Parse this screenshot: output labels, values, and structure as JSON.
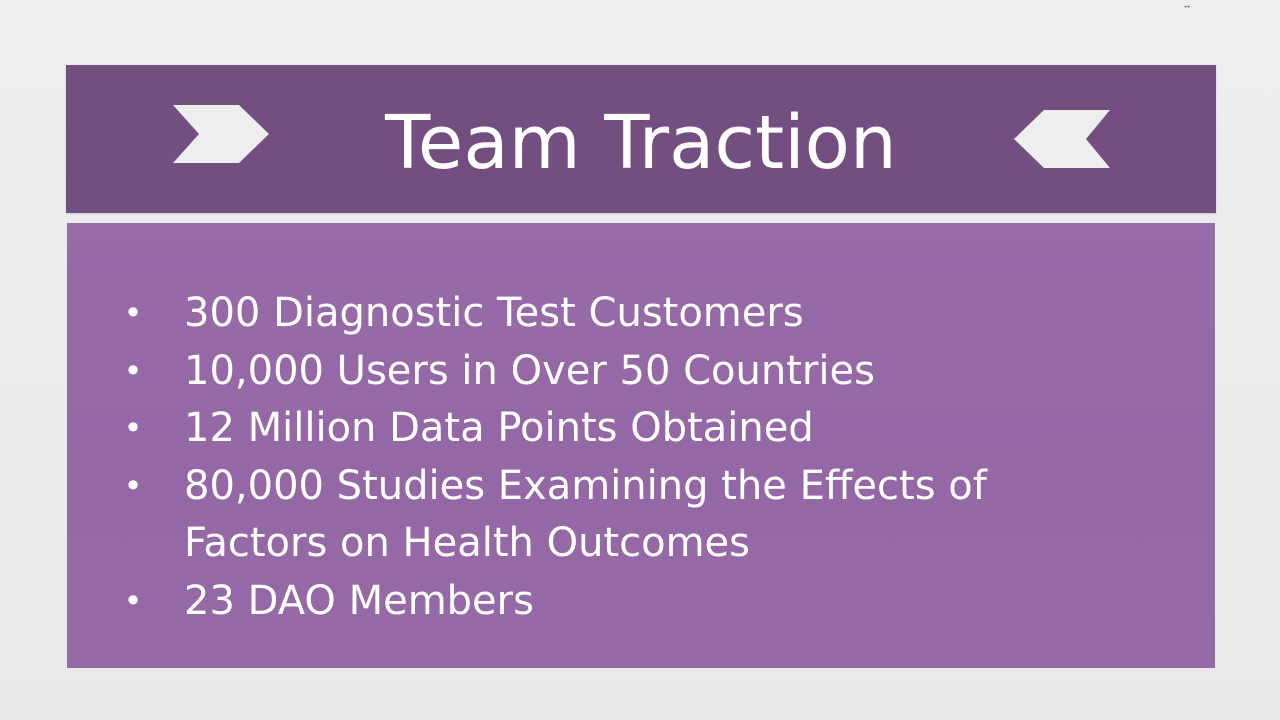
{
  "slide": {
    "title": "Team Traction",
    "bullets": [
      "300 Diagnostic Test Customers",
      "10,000 Users in Over 50 Countries",
      "12 Million Data Points Obtained",
      "80,000 Studies Examining the Effects of Factors on Health Outcomes",
      "23 DAO Members"
    ]
  },
  "icons": {
    "left_decoration": "chevron-right-icon",
    "right_decoration": "chevron-left-icon",
    "resize_handle": "resize-horizontal-icon"
  },
  "colors": {
    "title_bar": "#734e80",
    "content_box": "#976aa8",
    "background": "#ececec",
    "text": "#ffffff"
  }
}
